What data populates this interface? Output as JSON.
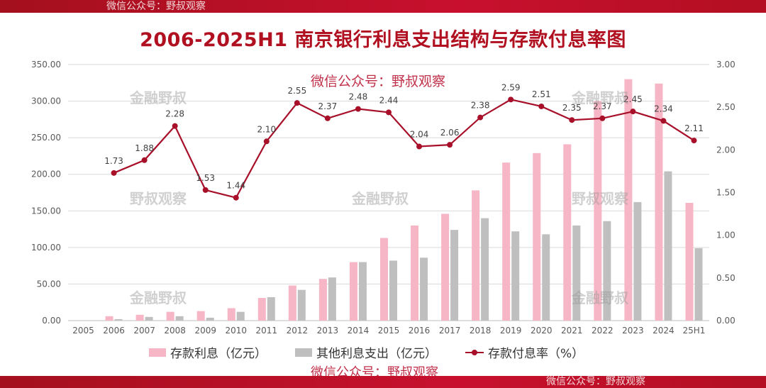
{
  "header": {
    "watermark": "微信公众号：野叔观察"
  },
  "footer": {
    "watermark": "微信公众号：野叔观察"
  },
  "title": "2006-2025H1 南京银行利息支出结构与存款付息率图",
  "watermarks": {
    "center_red": "微信公众号：野叔观察",
    "bottom_red": "微信公众号：野叔观察",
    "grey_a": "金融野叔",
    "grey_b": "野叔观察"
  },
  "legend": {
    "deposit_interest": "存款利息（亿元）",
    "other_interest": "其他利息支出（亿元）",
    "deposit_rate": "存款付息率（%）"
  },
  "colors": {
    "pink": "#f7b6c6",
    "grey": "#bfbfbf",
    "line": "#a8102a",
    "title": "#b01020"
  },
  "chart_data": {
    "type": "bar",
    "categories": [
      "2005",
      "2006",
      "2007",
      "2008",
      "2009",
      "2010",
      "2011",
      "2012",
      "2013",
      "2014",
      "2015",
      "2016",
      "2017",
      "2018",
      "2019",
      "2020",
      "2021",
      "2022",
      "2023",
      "2024",
      "25H1"
    ],
    "series": [
      {
        "name": "存款利息（亿元）",
        "type": "bar",
        "axis": "left",
        "values": [
          0,
          6,
          8,
          12,
          13,
          17,
          31,
          48,
          57,
          80,
          113,
          130,
          146,
          178,
          216,
          229,
          241,
          300,
          330,
          324,
          161
        ]
      },
      {
        "name": "其他利息支出（亿元）",
        "type": "bar",
        "axis": "left",
        "values": [
          0,
          2,
          5,
          6,
          4,
          12,
          32,
          42,
          59,
          80,
          82,
          86,
          124,
          140,
          122,
          118,
          130,
          136,
          162,
          204,
          99
        ]
      },
      {
        "name": "存款付息率（%）",
        "type": "line",
        "axis": "right",
        "values": [
          null,
          1.73,
          1.88,
          2.28,
          1.53,
          1.44,
          2.1,
          2.55,
          2.37,
          2.48,
          2.44,
          2.04,
          2.06,
          2.38,
          2.59,
          2.51,
          2.35,
          2.37,
          2.45,
          2.34,
          2.11
        ],
        "labels": [
          null,
          "1.73",
          "1.88",
          "2.28",
          "1.53",
          "1.44",
          "2.10",
          "2.55",
          "2.37",
          "2.48",
          "2.44",
          "2.04",
          "2.06",
          "2.38",
          "2.59",
          "2.51",
          "2.35",
          "2.37",
          "2.45",
          "2.34",
          "2.11"
        ]
      }
    ],
    "y_left": {
      "min": 0,
      "max": 350,
      "ticks": [
        "0.00",
        "50.00",
        "100.00",
        "150.00",
        "200.00",
        "250.00",
        "300.00",
        "350.00"
      ]
    },
    "y_right": {
      "min": 0,
      "max": 3,
      "ticks": [
        "0.00",
        "0.50",
        "1.00",
        "1.50",
        "2.00",
        "2.50",
        "3.00"
      ]
    },
    "grid": true,
    "legend_position": "bottom"
  }
}
